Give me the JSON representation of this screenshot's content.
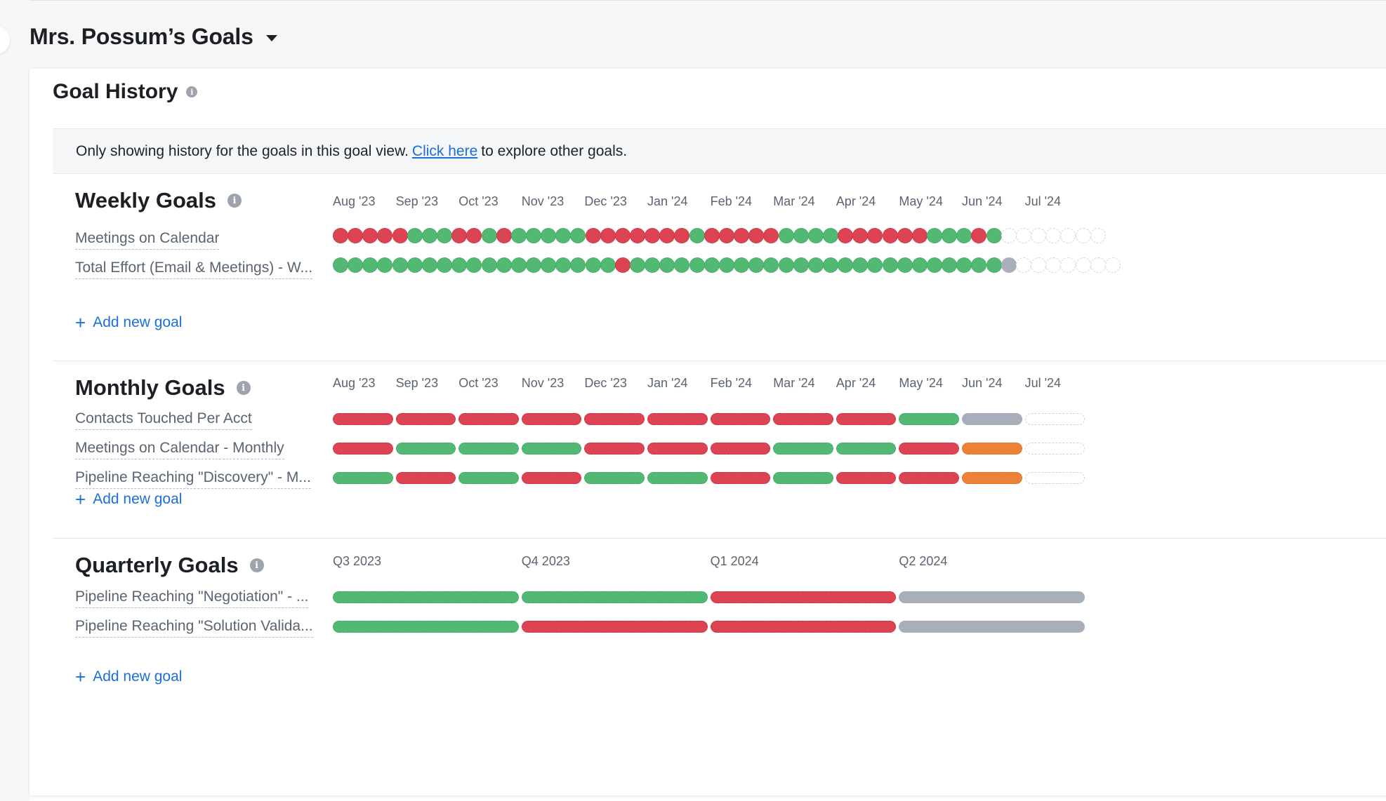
{
  "header": {
    "title": "Mrs. Possum’s Goals"
  },
  "history": {
    "title": "Goal History",
    "notice": {
      "before": "Only showing history for the goals in this goal view.",
      "link": "Click here",
      "after": "to explore other goals."
    }
  },
  "add_goal_label": "Add new goal",
  "status_colors": {
    "green": "#53b873",
    "red": "#dc4453",
    "gray": "#a8aeba",
    "orange": "#ec8138",
    "empty": "#ffffff"
  },
  "months": [
    "Aug '23",
    "Sep '23",
    "Oct '23",
    "Nov '23",
    "Dec '23",
    "Jan '24",
    "Feb '24",
    "Mar '24",
    "Apr '24",
    "May '24",
    "Jun '24",
    "Jul '24"
  ],
  "quarters": [
    "Q3 2023",
    "Q4 2023",
    "Q1 2024",
    "Q2 2024"
  ],
  "weekly": {
    "title": "Weekly Goals",
    "goals": [
      {
        "name": "Meetings on Calendar",
        "status": "rrrrrgggrrgrgggggrrrrrrrgrrrrrggggrrrrrrgggrgeeeeeee"
      },
      {
        "name": "Total Effort (Email & Meetings) - W...",
        "status": "gggggggggggggggggggrgggggggggggggggggggggggggaeeeeeee"
      }
    ]
  },
  "monthly": {
    "title": "Monthly Goals",
    "goals": [
      {
        "name": "Contacts Touched Per Acct",
        "status": "rrrrrrrrrgae"
      },
      {
        "name": "Meetings on Calendar - Monthly",
        "status": "rgggrrrggroe"
      },
      {
        "name": "Pipeline Reaching \"Discovery\" - M...",
        "status": "grgrggrgrroe"
      }
    ]
  },
  "quarterly": {
    "title": "Quarterly Goals",
    "goals": [
      {
        "name": "Pipeline Reaching \"Negotiation\" - ...",
        "status": "ggra"
      },
      {
        "name": "Pipeline Reaching \"Solution Valida...",
        "status": "grra"
      }
    ]
  }
}
